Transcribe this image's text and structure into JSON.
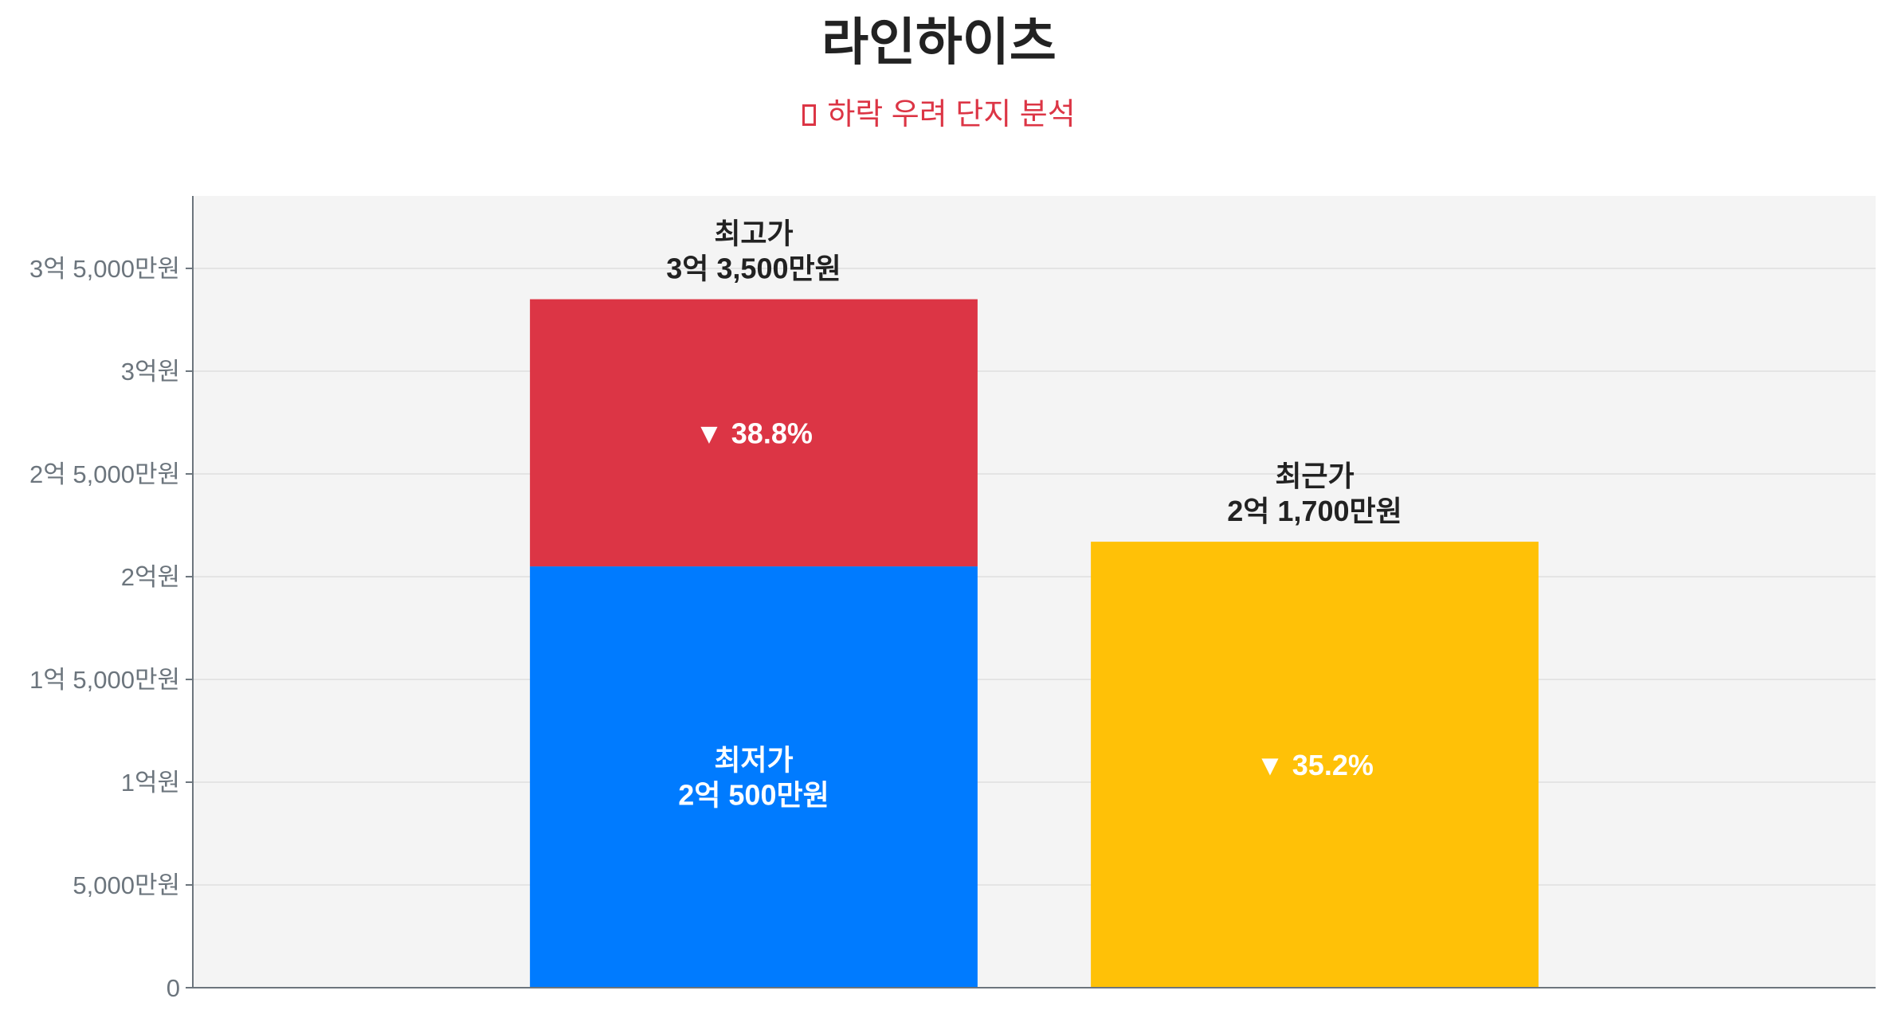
{
  "title": "라인하이츠",
  "subtitle": {
    "icon": "chart-decreasing-icon",
    "text": "하락 우려 단지 분석"
  },
  "colors": {
    "high": "#dc3545",
    "low": "#007bff",
    "recent": "#ffc107",
    "plot_bg": "#f4f4f4",
    "title": "#222222",
    "subtitle": "#dc3545"
  },
  "chart_data": {
    "type": "bar",
    "stacked": true,
    "unit": "원",
    "ylim": [
      0,
      385250000
    ],
    "grid": true,
    "yticks": [
      {
        "value": 0,
        "label": "0"
      },
      {
        "value": 50000000,
        "label": "5,000만원"
      },
      {
        "value": 100000000,
        "label": "1억원"
      },
      {
        "value": 150000000,
        "label": "1억 5,000만원"
      },
      {
        "value": 200000000,
        "label": "2억원"
      },
      {
        "value": 250000000,
        "label": "2억 5,000만원"
      },
      {
        "value": 300000000,
        "label": "3억원"
      },
      {
        "value": 350000000,
        "label": "3억 5,000만원"
      }
    ],
    "bars": [
      {
        "segments": [
          {
            "name": "최저가",
            "from": 0,
            "to": 205000000,
            "color": "#007bff",
            "label": [
              "최저가",
              "2억 500만원"
            ]
          },
          {
            "name": "최고가",
            "from": 205000000,
            "to": 335000000,
            "color": "#dc3545",
            "label": [
              "▼ 38.8%"
            ]
          }
        ],
        "top_label": [
          "최고가",
          "3억 3,500만원"
        ]
      },
      {
        "segments": [
          {
            "name": "최근가",
            "from": 0,
            "to": 217000000,
            "color": "#ffc107",
            "label": [
              "▼ 35.2%"
            ]
          }
        ],
        "top_label": [
          "최근가",
          "2억 1,700만원"
        ]
      }
    ]
  }
}
